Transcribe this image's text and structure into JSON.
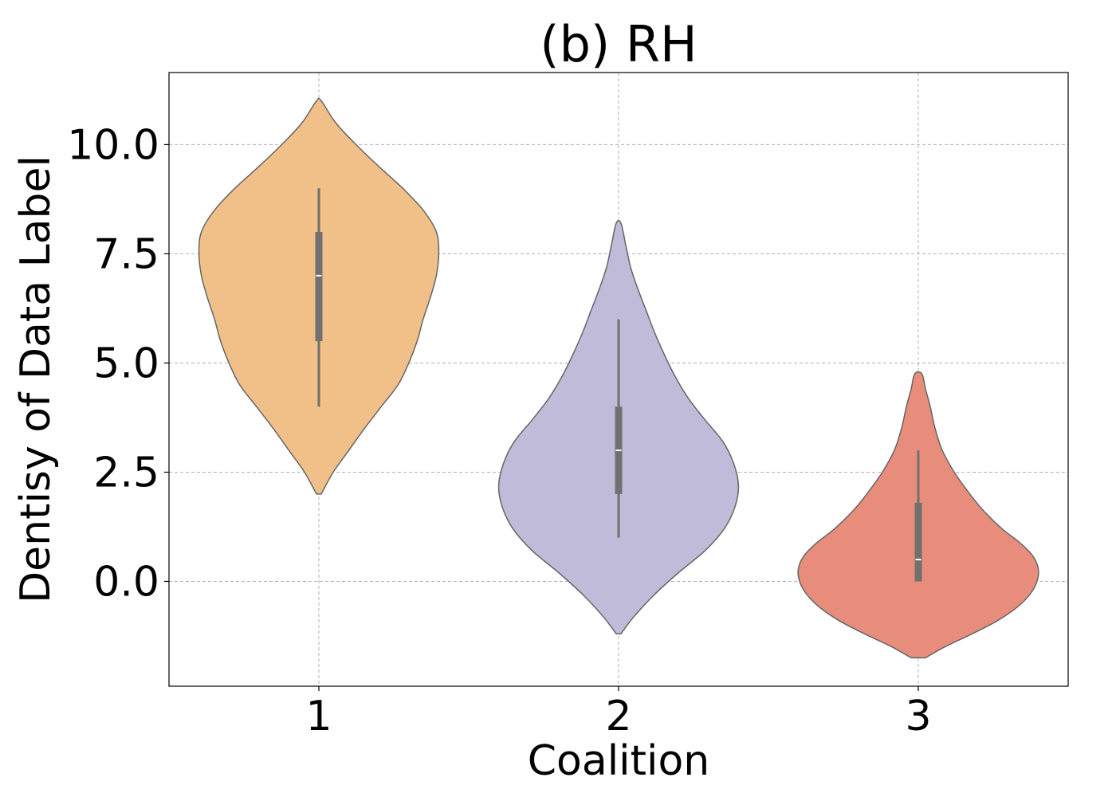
{
  "chart_data": {
    "type": "violin",
    "title": "(b) RH",
    "xlabel": "Coalition",
    "ylabel": "Dentisy of Data Label",
    "categories": [
      "1",
      "2",
      "3"
    ],
    "yticks": [
      "0.0",
      "2.5",
      "5.0",
      "7.5",
      "10.0"
    ],
    "ytick_values": [
      0,
      2.5,
      5,
      7.5,
      10
    ],
    "ylim": [
      -2.4,
      11.65
    ],
    "grid": true,
    "colors": [
      "#f0c088",
      "#bfbbd9",
      "#e88c7c"
    ],
    "edge_color": "#666666",
    "box_color": "#707070",
    "series": [
      {
        "category": "1",
        "whisker": [
          4.0,
          9.0
        ],
        "q1": 5.5,
        "median": 7.0,
        "q3": 8.0,
        "density_profile": [
          [
            2.0,
            0.02
          ],
          [
            2.5,
            0.12
          ],
          [
            3.0,
            0.25
          ],
          [
            3.5,
            0.38
          ],
          [
            4.0,
            0.52
          ],
          [
            4.5,
            0.66
          ],
          [
            5.0,
            0.75
          ],
          [
            5.5,
            0.82
          ],
          [
            6.0,
            0.87
          ],
          [
            6.5,
            0.93
          ],
          [
            7.0,
            0.98
          ],
          [
            7.5,
            1.0
          ],
          [
            8.0,
            0.98
          ],
          [
            8.5,
            0.87
          ],
          [
            9.0,
            0.7
          ],
          [
            9.5,
            0.5
          ],
          [
            10.0,
            0.31
          ],
          [
            10.5,
            0.14
          ],
          [
            11.0,
            0.02
          ]
        ]
      },
      {
        "category": "2",
        "whisker": [
          1.0,
          6.0
        ],
        "q1": 2.0,
        "median": 3.0,
        "q3": 4.0,
        "density_profile": [
          [
            -1.2,
            0.02
          ],
          [
            -0.8,
            0.13
          ],
          [
            -0.3,
            0.3
          ],
          [
            0.2,
            0.5
          ],
          [
            0.7,
            0.72
          ],
          [
            1.2,
            0.88
          ],
          [
            1.7,
            0.97
          ],
          [
            2.2,
            1.0
          ],
          [
            2.7,
            0.96
          ],
          [
            3.2,
            0.87
          ],
          [
            3.7,
            0.72
          ],
          [
            4.2,
            0.58
          ],
          [
            4.7,
            0.47
          ],
          [
            5.2,
            0.38
          ],
          [
            5.7,
            0.3
          ],
          [
            6.2,
            0.23
          ],
          [
            6.7,
            0.16
          ],
          [
            7.2,
            0.1
          ],
          [
            7.7,
            0.06
          ],
          [
            8.2,
            0.02
          ]
        ]
      },
      {
        "category": "3",
        "whisker": [
          0.0,
          3.0
        ],
        "q1": 0.0,
        "median": 0.5,
        "q3": 1.8,
        "density_profile": [
          [
            -1.75,
            0.06
          ],
          [
            -1.5,
            0.22
          ],
          [
            -1.2,
            0.45
          ],
          [
            -0.9,
            0.66
          ],
          [
            -0.6,
            0.82
          ],
          [
            -0.3,
            0.93
          ],
          [
            0.0,
            0.99
          ],
          [
            0.3,
            1.0
          ],
          [
            0.6,
            0.95
          ],
          [
            0.9,
            0.84
          ],
          [
            1.2,
            0.7
          ],
          [
            1.6,
            0.55
          ],
          [
            2.0,
            0.43
          ],
          [
            2.5,
            0.3
          ],
          [
            3.0,
            0.2
          ],
          [
            3.5,
            0.14
          ],
          [
            4.0,
            0.1
          ],
          [
            4.4,
            0.06
          ],
          [
            4.75,
            0.03
          ]
        ]
      }
    ]
  }
}
